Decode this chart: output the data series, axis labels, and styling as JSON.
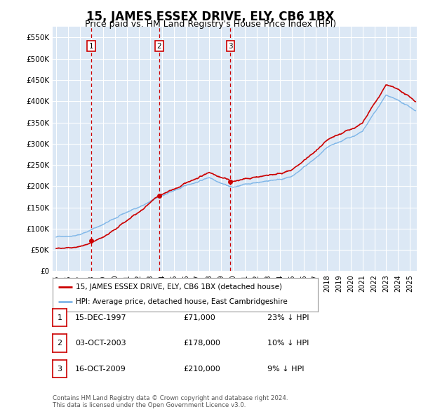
{
  "title": "15, JAMES ESSEX DRIVE, ELY, CB6 1BX",
  "subtitle": "Price paid vs. HM Land Registry's House Price Index (HPI)",
  "ylabel_ticks": [
    "£0",
    "£50K",
    "£100K",
    "£150K",
    "£200K",
    "£250K",
    "£300K",
    "£350K",
    "£400K",
    "£450K",
    "£500K",
    "£550K"
  ],
  "ytick_values": [
    0,
    50000,
    100000,
    150000,
    200000,
    250000,
    300000,
    350000,
    400000,
    450000,
    500000,
    550000
  ],
  "ylim": [
    0,
    575000
  ],
  "xlim_start": 1994.7,
  "xlim_end": 2025.6,
  "sales": [
    {
      "date_num": 1997.96,
      "price": 71000,
      "label": "1"
    },
    {
      "date_num": 2003.75,
      "price": 178000,
      "label": "2"
    },
    {
      "date_num": 2009.79,
      "price": 210000,
      "label": "3"
    }
  ],
  "sale_color": "#cc0000",
  "hpi_color": "#7eb6e8",
  "legend_items": [
    {
      "label": "15, JAMES ESSEX DRIVE, ELY, CB6 1BX (detached house)",
      "color": "#cc0000"
    },
    {
      "label": "HPI: Average price, detached house, East Cambridgeshire",
      "color": "#7eb6e8"
    }
  ],
  "table_rows": [
    {
      "num": "1",
      "date": "15-DEC-1997",
      "price": "£71,000",
      "hpi": "23% ↓ HPI"
    },
    {
      "num": "2",
      "date": "03-OCT-2003",
      "price": "£178,000",
      "hpi": "10% ↓ HPI"
    },
    {
      "num": "3",
      "date": "16-OCT-2009",
      "price": "£210,000",
      "hpi": "9% ↓ HPI"
    }
  ],
  "footer": "Contains HM Land Registry data © Crown copyright and database right 2024.\nThis data is licensed under the Open Government Licence v3.0.",
  "background_color": "#ffffff",
  "plot_bg_color": "#dce8f5",
  "grid_color": "#ffffff",
  "title_fontsize": 12,
  "subtitle_fontsize": 9
}
